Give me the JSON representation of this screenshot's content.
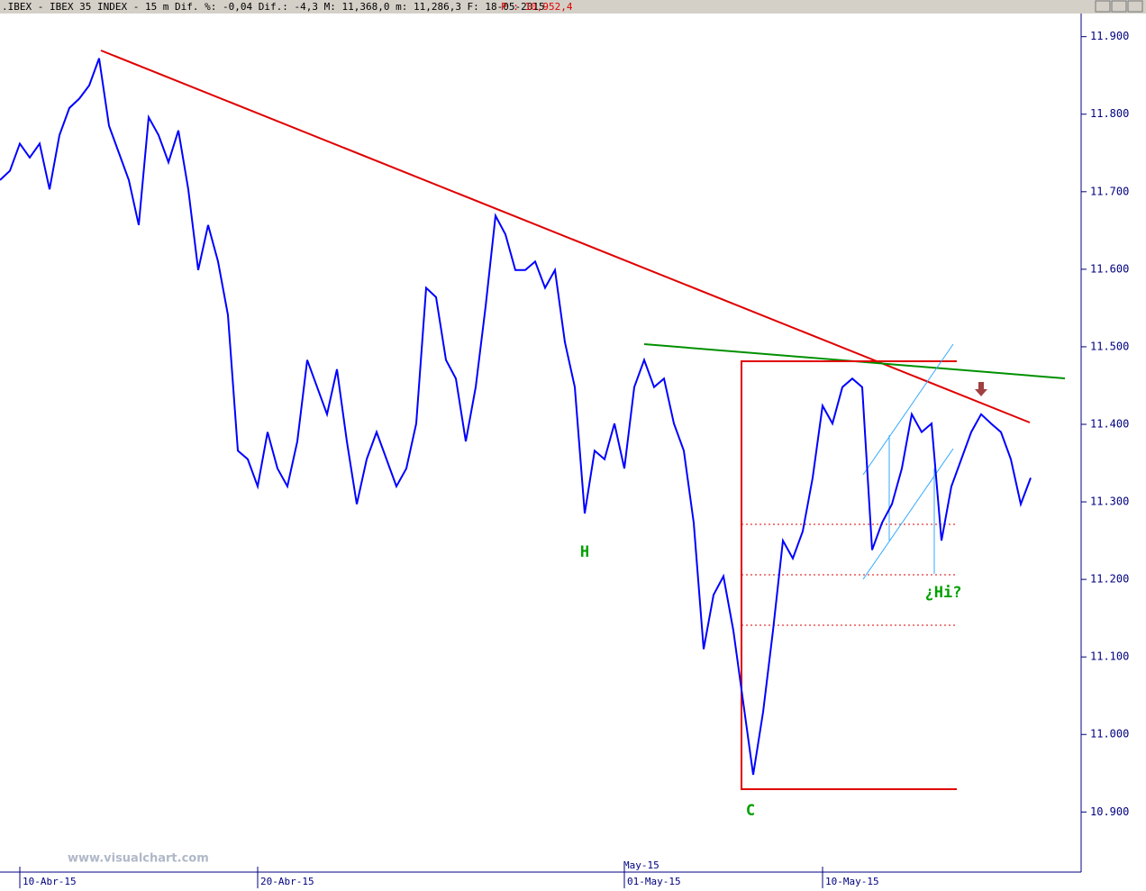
{
  "chart_data": {
    "type": "line",
    "title": ".IBEX - IBEX 35 INDEX -  15 m Dif. %: -0,04 Dif.: -4,3 M: 11,368,0 m: 11,286,3 F: 18-05-2015",
    "subtitle": "P : 10,952,4",
    "annotations": [
      "H",
      "C",
      "¿Hi?",
      "www.visualchart.com",
      "May-15"
    ],
    "categories": [
      null,
      null,
      "10-Abr-15",
      null,
      null,
      null,
      null,
      null,
      null,
      null,
      null,
      null,
      null,
      null,
      null,
      null,
      null,
      null,
      null,
      null,
      null,
      null,
      null,
      null,
      null,
      null,
      "20-Abr-15",
      null,
      null,
      null,
      null,
      null,
      null,
      null,
      null,
      null,
      null,
      null,
      null,
      null,
      null,
      null,
      null,
      null,
      null,
      null,
      null,
      null,
      null,
      null,
      null,
      null,
      null,
      null,
      null,
      null,
      null,
      null,
      null,
      null,
      null,
      null,
      null,
      "01-May-15",
      null,
      null,
      null,
      null,
      null,
      null,
      null,
      null,
      null,
      null,
      null,
      null,
      null,
      null,
      null,
      null,
      null,
      null,
      null,
      "10-May-15",
      null,
      null,
      null,
      null,
      null,
      null,
      null,
      null,
      null,
      null,
      null,
      null,
      null,
      null,
      null,
      null,
      null,
      null,
      null,
      null,
      null
    ],
    "series": [
      {
        "name": "IBEX 35",
        "color": "#0000ff",
        "values": [
          11715,
          11727,
          11762,
          11744,
          11762,
          11703,
          11773,
          11808,
          11820,
          11837,
          11872,
          11785,
          11750,
          11715,
          11657,
          11796,
          11773,
          11738,
          11779,
          11703,
          11599,
          11657,
          11610,
          11541,
          11366,
          11355,
          11320,
          11390,
          11343,
          11320,
          11378,
          11483,
          11448,
          11413,
          11471,
          11378,
          11297,
          11355,
          11390,
          11355,
          11320,
          11343,
          11401,
          11576,
          11564,
          11483,
          11459,
          11378,
          11448,
          11552,
          11669,
          11645,
          11599,
          11599,
          11610,
          11576,
          11599,
          11506,
          11448,
          11285,
          11366,
          11355,
          11401,
          11343,
          11448,
          11483,
          11448,
          11459,
          11401,
          11366,
          11273,
          11110,
          11180,
          11204,
          11134,
          11041,
          10948,
          11029,
          11134,
          11250,
          11227,
          11262,
          11331,
          11424,
          11401,
          11448,
          11459,
          11448,
          11238,
          11273,
          11297,
          11343,
          11413,
          11390,
          11401,
          11250,
          11320,
          11355,
          11390,
          11413,
          11401,
          11390,
          11355,
          11297,
          11331
        ]
      }
    ],
    "ylim": [
      10826,
      11931
    ],
    "yticks": [
      {
        "value": 10900,
        "label": "10.900"
      },
      {
        "value": 11000,
        "label": "11.000"
      },
      {
        "value": 11100,
        "label": "11.100"
      },
      {
        "value": 11200,
        "label": "11.200"
      },
      {
        "value": 11300,
        "label": "11.300"
      },
      {
        "value": 11400,
        "label": "11.400"
      },
      {
        "value": 11500,
        "label": "11.500"
      },
      {
        "value": 11600,
        "label": "11.600"
      },
      {
        "value": 11700,
        "label": "11.700"
      },
      {
        "value": 11800,
        "label": "11.800"
      },
      {
        "value": 11900,
        "label": "11.900"
      }
    ]
  }
}
